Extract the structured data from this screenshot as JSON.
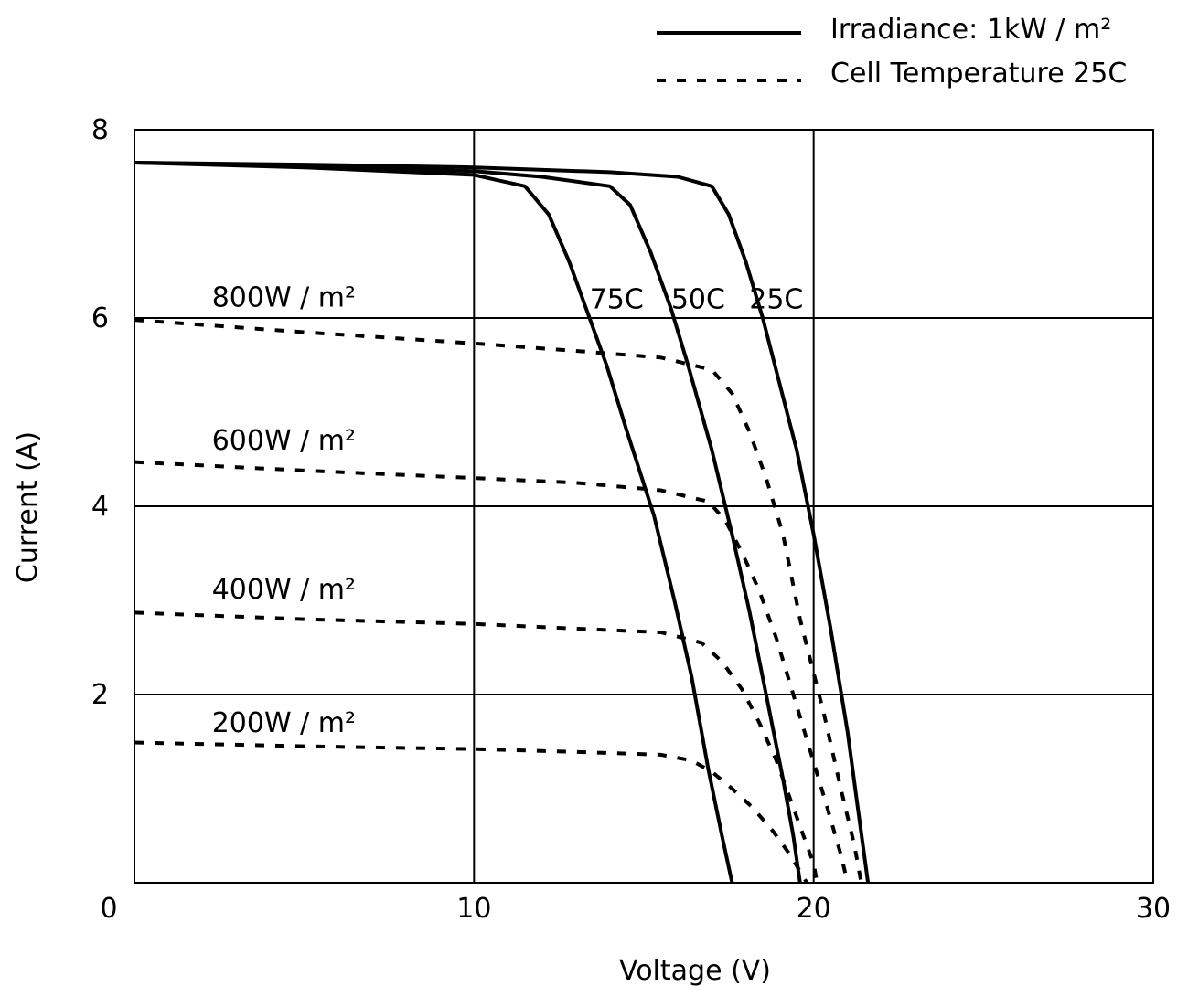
{
  "chart_data": {
    "type": "line",
    "xlabel": "Voltage (V)",
    "ylabel": "Current (A)",
    "xlim": [
      0,
      30
    ],
    "ylim": [
      0,
      8
    ],
    "x_ticks": [
      0,
      10,
      20,
      30
    ],
    "y_ticks": [
      0,
      2,
      4,
      6,
      8
    ],
    "grid": true,
    "legend": {
      "position": "top-right",
      "entries": [
        {
          "name": "Irradiance: 1kW / m²",
          "style": "solid"
        },
        {
          "name": "Cell Temperature 25C",
          "style": "dotted"
        }
      ]
    },
    "series": [
      {
        "name": "25C",
        "style": "solid",
        "points": [
          [
            0,
            7.65
          ],
          [
            5,
            7.63
          ],
          [
            10,
            7.6
          ],
          [
            14,
            7.55
          ],
          [
            16,
            7.5
          ],
          [
            17,
            7.4
          ],
          [
            17.5,
            7.1
          ],
          [
            18,
            6.6
          ],
          [
            18.5,
            6.0
          ],
          [
            19,
            5.3
          ],
          [
            19.5,
            4.6
          ],
          [
            20,
            3.7
          ],
          [
            20.5,
            2.7
          ],
          [
            21,
            1.6
          ],
          [
            21.3,
            0.8
          ],
          [
            21.6,
            0
          ]
        ]
      },
      {
        "name": "50C",
        "style": "solid",
        "points": [
          [
            0,
            7.65
          ],
          [
            5,
            7.62
          ],
          [
            10,
            7.56
          ],
          [
            12,
            7.5
          ],
          [
            14,
            7.4
          ],
          [
            14.6,
            7.2
          ],
          [
            15.2,
            6.7
          ],
          [
            15.8,
            6.1
          ],
          [
            16.3,
            5.5
          ],
          [
            17,
            4.6
          ],
          [
            17.6,
            3.7
          ],
          [
            18.1,
            2.9
          ],
          [
            18.6,
            2.0
          ],
          [
            19.1,
            1.1
          ],
          [
            19.4,
            0.5
          ],
          [
            19.6,
            0
          ]
        ]
      },
      {
        "name": "75C",
        "style": "solid",
        "points": [
          [
            0,
            7.65
          ],
          [
            5,
            7.6
          ],
          [
            10,
            7.52
          ],
          [
            11.5,
            7.4
          ],
          [
            12.2,
            7.1
          ],
          [
            12.8,
            6.6
          ],
          [
            13.3,
            6.1
          ],
          [
            13.9,
            5.5
          ],
          [
            14.5,
            4.8
          ],
          [
            15.3,
            3.9
          ],
          [
            15.9,
            3.0
          ],
          [
            16.4,
            2.2
          ],
          [
            16.9,
            1.2
          ],
          [
            17.3,
            0.5
          ],
          [
            17.6,
            0
          ]
        ]
      },
      {
        "name": "800W / m²",
        "style": "dotted",
        "points": [
          [
            0,
            5.98
          ],
          [
            5,
            5.85
          ],
          [
            10,
            5.73
          ],
          [
            13,
            5.65
          ],
          [
            15.5,
            5.58
          ],
          [
            17,
            5.45
          ],
          [
            17.6,
            5.2
          ],
          [
            18.1,
            4.8
          ],
          [
            18.6,
            4.3
          ],
          [
            19.1,
            3.7
          ],
          [
            19.6,
            2.8
          ],
          [
            20.3,
            1.8
          ],
          [
            20.8,
            1.0
          ],
          [
            21.2,
            0.4
          ],
          [
            21.4,
            0
          ]
        ]
      },
      {
        "name": "600W / m²",
        "style": "dotted",
        "points": [
          [
            0,
            4.47
          ],
          [
            5,
            4.38
          ],
          [
            10,
            4.3
          ],
          [
            13,
            4.25
          ],
          [
            15.5,
            4.17
          ],
          [
            16.9,
            4.05
          ],
          [
            17.4,
            3.85
          ],
          [
            17.9,
            3.5
          ],
          [
            18.4,
            3.1
          ],
          [
            18.9,
            2.6
          ],
          [
            19.4,
            2.0
          ],
          [
            19.9,
            1.4
          ],
          [
            20.4,
            0.8
          ],
          [
            20.8,
            0.3
          ],
          [
            21.0,
            0
          ]
        ]
      },
      {
        "name": "400W / m²",
        "style": "dotted",
        "points": [
          [
            0,
            2.87
          ],
          [
            5,
            2.8
          ],
          [
            10,
            2.75
          ],
          [
            13,
            2.7
          ],
          [
            15.5,
            2.66
          ],
          [
            16.7,
            2.55
          ],
          [
            17.3,
            2.35
          ],
          [
            17.9,
            2.05
          ],
          [
            18.4,
            1.7
          ],
          [
            18.9,
            1.3
          ],
          [
            19.3,
            0.9
          ],
          [
            19.7,
            0.5
          ],
          [
            20.0,
            0.2
          ],
          [
            20.1,
            0
          ]
        ]
      },
      {
        "name": "200W / m²",
        "style": "dotted",
        "points": [
          [
            0,
            1.49
          ],
          [
            5,
            1.45
          ],
          [
            10,
            1.42
          ],
          [
            13,
            1.39
          ],
          [
            15.5,
            1.36
          ],
          [
            16.4,
            1.3
          ],
          [
            17.0,
            1.18
          ],
          [
            17.6,
            1.0
          ],
          [
            18.2,
            0.8
          ],
          [
            18.8,
            0.55
          ],
          [
            19.3,
            0.3
          ],
          [
            19.6,
            0.12
          ],
          [
            19.8,
            0
          ]
        ]
      }
    ],
    "curve_labels": [
      {
        "text": "75C",
        "x": 14.2,
        "y": 6.1
      },
      {
        "text": "50C",
        "x": 16.6,
        "y": 6.1
      },
      {
        "text": "25C",
        "x": 18.9,
        "y": 6.1
      },
      {
        "text": "800W / m²",
        "x": 4.4,
        "y": 6.12
      },
      {
        "text": "600W / m²",
        "x": 4.4,
        "y": 4.6
      },
      {
        "text": "400W / m²",
        "x": 4.4,
        "y": 3.02
      },
      {
        "text": "200W / m²",
        "x": 4.4,
        "y": 1.6
      }
    ]
  }
}
